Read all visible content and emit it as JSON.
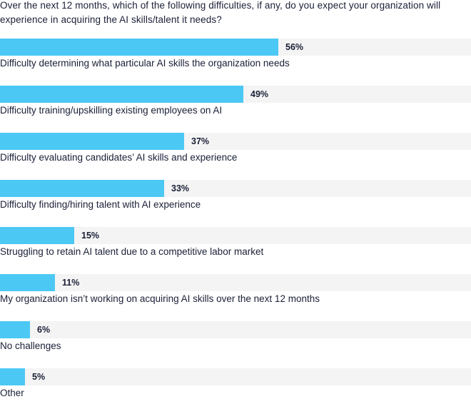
{
  "chart_data": {
    "type": "bar",
    "orientation": "horizontal",
    "title": "Over the next 12 months, which of the following difficulties, if any, do you expect your organization will experience in acquiring the AI skills/talent it needs?",
    "categories": [
      "Difficulty determining what particular AI skills the organization needs",
      "Difficulty training/upskilling existing employees on AI",
      "Difficulty evaluating candidates’ AI skills and experience",
      "Difficulty finding/hiring talent with AI experience",
      "Struggling to retain AI talent due to a competitive labor market",
      "My organization isn’t working on acquiring AI skills over the next 12 months",
      "No challenges",
      "Other"
    ],
    "values": [
      56,
      49,
      37,
      33,
      15,
      11,
      6,
      5
    ],
    "value_labels": [
      "56%",
      "49%",
      "37%",
      "33%",
      "15%",
      "11%",
      "6%",
      "5%"
    ],
    "xlim": [
      0,
      100
    ],
    "grid": false,
    "legend": "none",
    "colors": {
      "bar": "#4cc8f4",
      "track": "#f4f4f4",
      "text": "#1a1f36"
    }
  }
}
